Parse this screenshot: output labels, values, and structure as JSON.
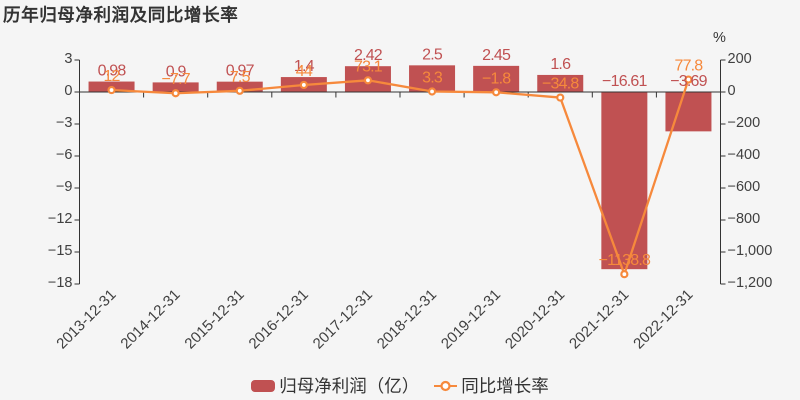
{
  "title": {
    "text": "历年归母净利润及同比增长率"
  },
  "chart_data": {
    "type": "combo-bar-line",
    "categories": [
      "2013-12-31",
      "2014-12-31",
      "2015-12-31",
      "2016-12-31",
      "2017-12-31",
      "2018-12-31",
      "2019-12-31",
      "2020-12-31",
      "2021-12-31",
      "2022-12-31"
    ],
    "series": [
      {
        "name": "归母净利润（亿）",
        "type": "bar",
        "axis": "left",
        "color": "#c05152",
        "values": [
          0.98,
          0.9,
          0.97,
          1.4,
          2.42,
          2.5,
          2.45,
          1.6,
          -16.61,
          -3.69
        ],
        "labels": [
          "0.98",
          "0.9",
          "0.97",
          "1.4",
          "2.42",
          "2.5",
          "2.45",
          "1.6",
          "-16.61",
          "-3.69"
        ]
      },
      {
        "name": "同比增长率",
        "type": "line",
        "axis": "right",
        "color": "#f6893c",
        "values": [
          12,
          -7.7,
          7.5,
          44,
          73.1,
          3.3,
          -1.8,
          -34.8,
          -1138.8,
          77.8
        ],
        "labels": [
          "12",
          "-7.7",
          "7.5",
          "44",
          "73.1",
          "3.3",
          "-1.8",
          "-34.8",
          "-1138.8",
          "77.8"
        ]
      }
    ],
    "y_axis_left": {
      "min": -18,
      "max": 3,
      "step": 3,
      "tick_labels": [
        "3",
        "0",
        "-3",
        "-6",
        "-9",
        "-12",
        "-15",
        "-18"
      ]
    },
    "y_axis_right": {
      "min": -1200,
      "max": 200,
      "step": 200,
      "unit_label": "%",
      "tick_labels": [
        "200",
        "0",
        "-200",
        "-400",
        "-600",
        "-800",
        "-1,000",
        "-1,200"
      ]
    },
    "x_axis": {
      "label_rotate": 45
    },
    "legend": {
      "position": "bottom",
      "items": [
        "归母净利润（亿）",
        "同比增长率"
      ]
    },
    "grid_lines": false,
    "background": "#f5f5f5",
    "text_color": "#404040",
    "axis_color": "#333333"
  },
  "legend": {
    "bar_label": "归母净利润（亿）",
    "line_label": "同比增长率"
  }
}
